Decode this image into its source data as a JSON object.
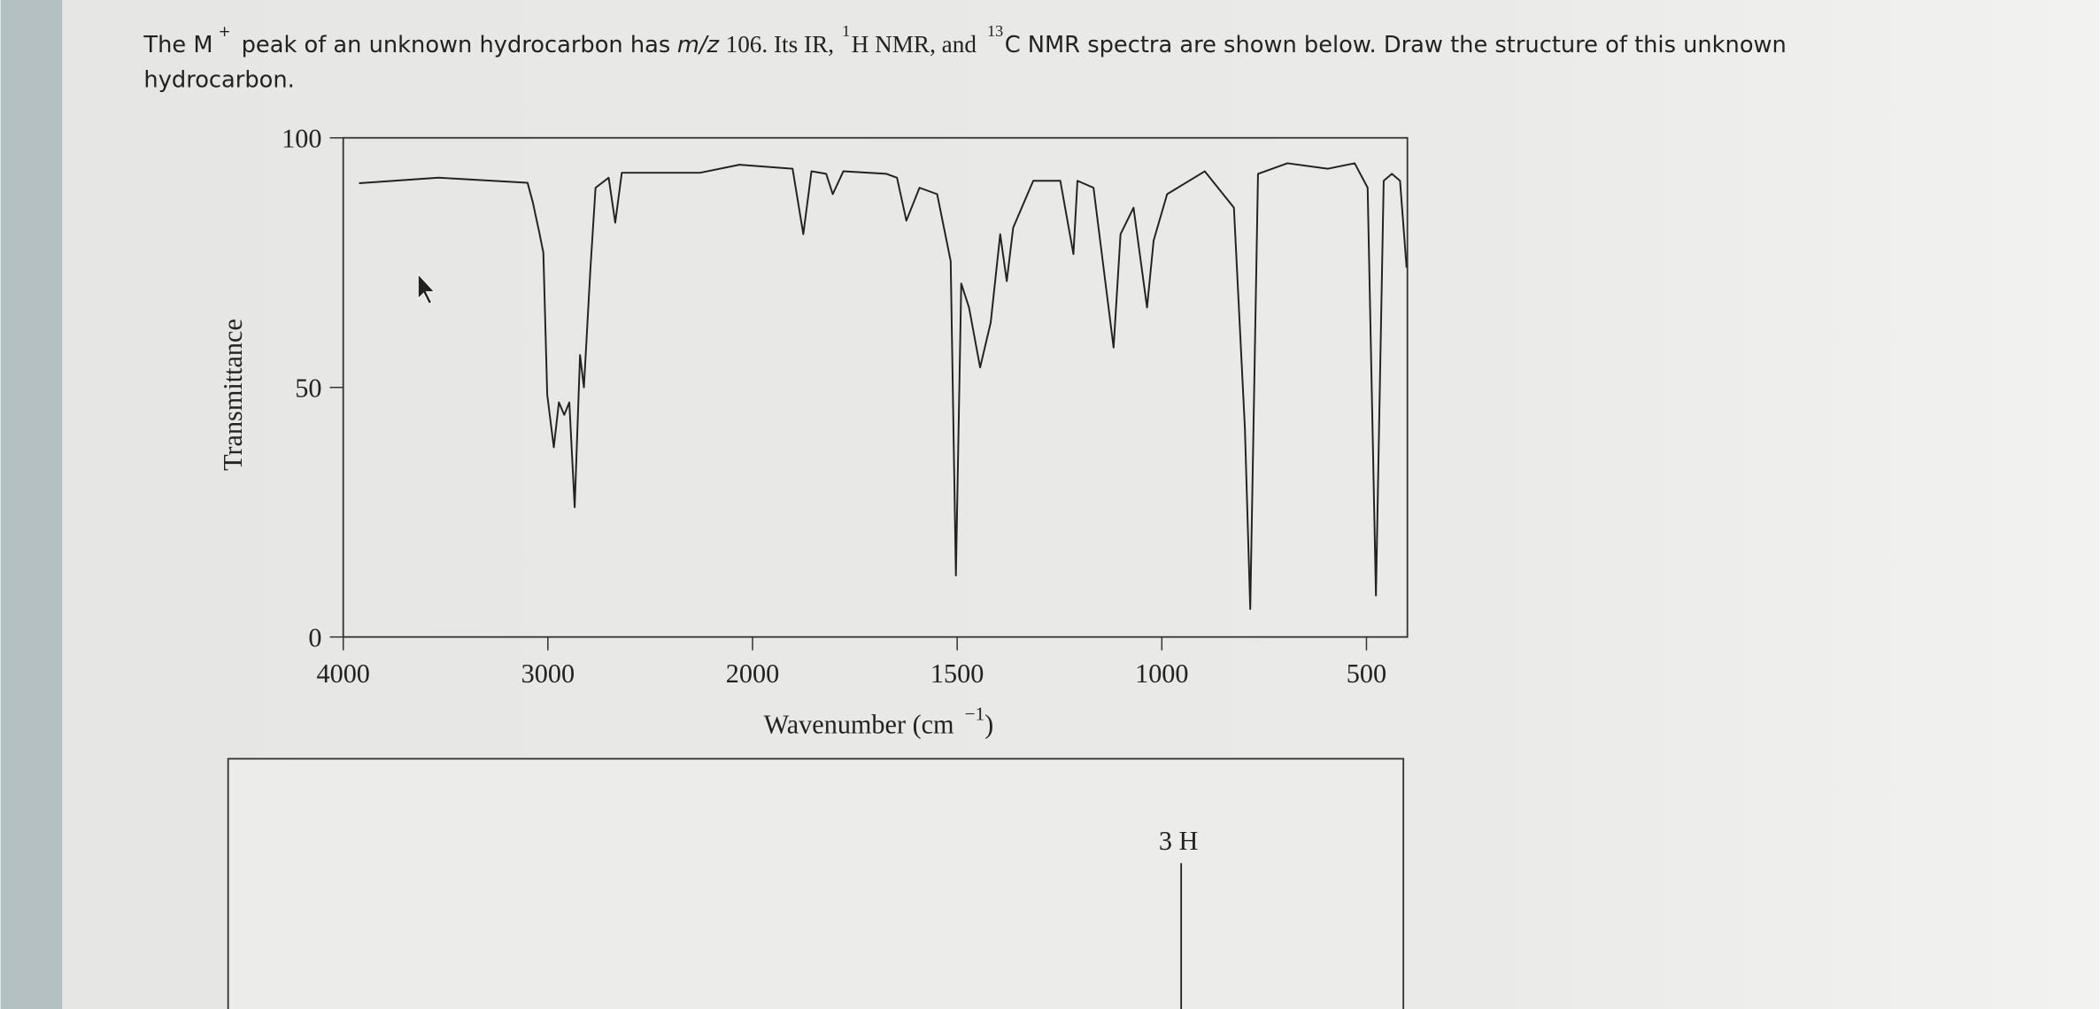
{
  "question": {
    "segments": [
      "The M",
      "+",
      "peak of an unknown hydrocarbon has",
      "m/z",
      "106. Its IR,",
      "1",
      "H NMR, and",
      "13",
      "C NMR spectra are shown below. Draw the structure of this unknown",
      "hydrocarbon."
    ]
  },
  "chart_data": {
    "type": "line",
    "ylabel": "Transmittance",
    "xlabel": {
      "text": "Wavenumber (cm",
      "superscript": "−1",
      "close": ")"
    },
    "xlim": [
      4000,
      400
    ],
    "x_scale_break": 2000,
    "xticks": [
      4000,
      3000,
      2000,
      1500,
      1000,
      500
    ],
    "ylim": [
      0,
      100
    ],
    "yticks": [
      0,
      50,
      100
    ],
    "color": "#222222",
    "x": [
      3923,
      3534,
      3099,
      3073,
      3042,
      3022,
      3003,
      2971,
      2946,
      2920,
      2895,
      2869,
      2843,
      2824,
      2792,
      2767,
      2703,
      2671,
      2639,
      2256,
      2064,
      1902,
      1876,
      1856,
      1820,
      1804,
      1778,
      1673,
      1647,
      1624,
      1592,
      1549,
      1516,
      1503,
      1490,
      1471,
      1444,
      1418,
      1395,
      1379,
      1363,
      1314,
      1248,
      1216,
      1206,
      1167,
      1118,
      1101,
      1069,
      1036,
      1020,
      987,
      895,
      824,
      797,
      784,
      765,
      693,
      595,
      529,
      497,
      477,
      458,
      438,
      418,
      402
    ],
    "values": [
      90.9,
      92,
      91,
      87,
      81,
      77,
      48.5,
      38,
      47,
      44.5,
      47,
      26,
      56.5,
      50,
      74,
      90,
      92,
      83,
      93,
      93,
      94.6,
      93.8,
      80.7,
      93.3,
      92.8,
      88.7,
      93.3,
      92.8,
      92,
      83.4,
      90,
      88.7,
      75.3,
      12.3,
      70.8,
      66,
      54,
      63,
      80.7,
      71.3,
      82,
      91.4,
      91.4,
      76.7,
      91.4,
      90,
      58,
      80.7,
      86,
      66,
      79.4,
      88.7,
      93.3,
      86,
      41.8,
      5.6,
      92.8,
      94.9,
      93.8,
      94.9,
      90,
      8.3,
      91.4,
      92.8,
      91.4,
      74
    ]
  },
  "nmr": {
    "peak_label": "3 H"
  }
}
